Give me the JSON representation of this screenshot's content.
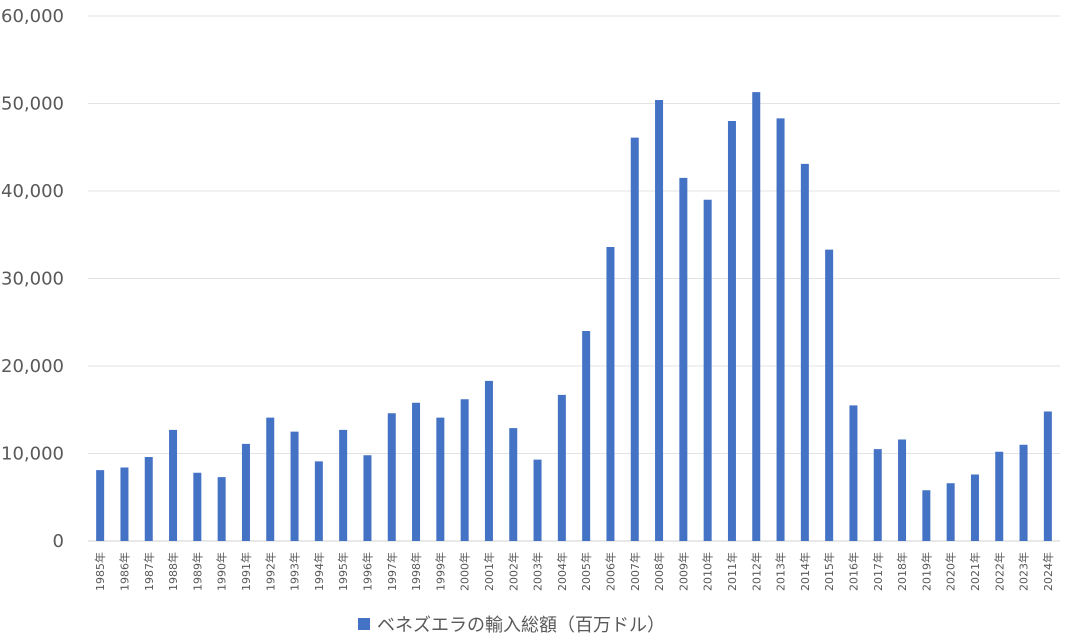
{
  "chart_data": {
    "type": "bar",
    "title": "",
    "xlabel": "",
    "ylabel": "",
    "ylim": [
      0,
      60000
    ],
    "y_ticks": [
      0,
      10000,
      20000,
      30000,
      40000,
      50000,
      60000
    ],
    "y_tick_labels": [
      "0",
      "10,000",
      "20,000",
      "30,000",
      "40,000",
      "50,000",
      "60,000"
    ],
    "grid": true,
    "legend_position": "bottom",
    "categories": [
      "1985年",
      "1986年",
      "1987年",
      "1988年",
      "1989年",
      "1990年",
      "1991年",
      "1992年",
      "1993年",
      "1994年",
      "1995年",
      "1996年",
      "1997年",
      "1998年",
      "1999年",
      "2000年",
      "2001年",
      "2002年",
      "2003年",
      "2004年",
      "2005年",
      "2006年",
      "2007年",
      "2008年",
      "2009年",
      "2010年",
      "2011年",
      "2012年",
      "2013年",
      "2014年",
      "2015年",
      "2016年",
      "2017年",
      "2018年",
      "2019年",
      "2020年",
      "2021年",
      "2022年",
      "2023年",
      "2024年"
    ],
    "series": [
      {
        "name": "ベネズエラの輸入総額（百万ドル）",
        "color": "#4472c4",
        "values": [
          8100,
          8400,
          9600,
          12700,
          7800,
          7300,
          11100,
          14100,
          12500,
          9100,
          12700,
          9800,
          14600,
          15800,
          14100,
          16200,
          18300,
          12900,
          9300,
          16700,
          24000,
          33600,
          46100,
          50400,
          41500,
          39000,
          48000,
          51300,
          48300,
          43100,
          33300,
          15500,
          10500,
          11600,
          5800,
          6600,
          7600,
          10200,
          11000,
          14800
        ]
      }
    ]
  }
}
